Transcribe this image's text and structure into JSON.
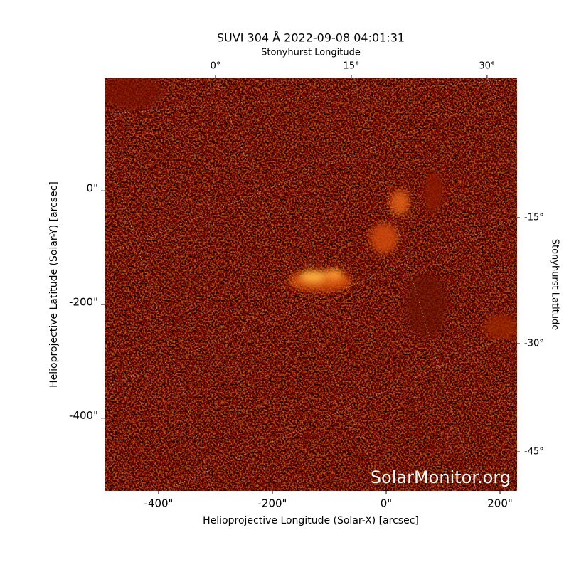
{
  "chart_data": {
    "type": "image",
    "title": "SUVI 304 Å 2022-09-08 04:01:31",
    "xlabel": "Helioprojective Longitude (Solar-X) [arcsec]",
    "ylabel": "Helioprojective Latitude (Solar-Y) [arcsec]",
    "top_label": "Stonyhurst Longitude",
    "right_label": "Stonyhurst Latitude",
    "watermark": "SolarMonitor.org",
    "xlim": [
      -495,
      230
    ],
    "ylim": [
      -528,
      198
    ],
    "xticks": [
      {
        "value": -400,
        "label": "-400\""
      },
      {
        "value": -200,
        "label": "-200\""
      },
      {
        "value": 0,
        "label": "0\""
      },
      {
        "value": 200,
        "label": "200\""
      }
    ],
    "yticks": [
      {
        "value": 0,
        "label": "0\""
      },
      {
        "value": -200,
        "label": "-200\""
      },
      {
        "value": -400,
        "label": "-400\""
      }
    ],
    "lon_ticks": [
      {
        "value": 0,
        "label": "0°"
      },
      {
        "value": 15,
        "label": "15°"
      },
      {
        "value": 30,
        "label": "30°"
      }
    ],
    "lat_ticks": [
      {
        "value": -15,
        "label": "-15°"
      },
      {
        "value": -30,
        "label": "-30°"
      },
      {
        "value": -45,
        "label": "-45°"
      }
    ]
  }
}
